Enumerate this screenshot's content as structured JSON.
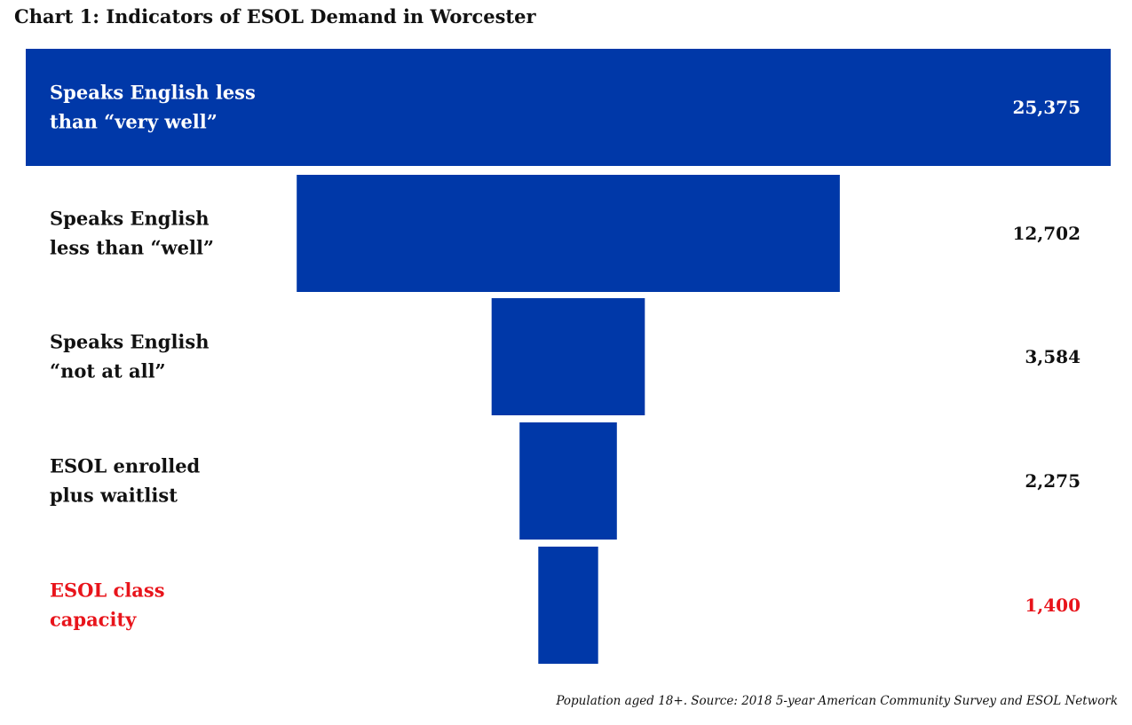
{
  "title": "Chart 1: Indicators of ESOL Demand in Worcester",
  "source_note": "Population aged 18+. Source: 2018 5-year American Community Survey and ESOL Network",
  "colors": {
    "bar": "#0038A8",
    "text": "#111111",
    "label_on_bar": "#ffffff",
    "highlight": "#E8141B"
  },
  "chart_data": {
    "type": "bar",
    "orientation": "horizontal-funnel",
    "categories": [
      [
        "Speaks English less",
        "than “very well”"
      ],
      [
        "Speaks English",
        "less than “well”"
      ],
      [
        "Speaks English",
        "“not at all”"
      ],
      [
        "ESOL enrolled",
        "plus waitlist"
      ],
      [
        "ESOL class",
        "capacity"
      ]
    ],
    "values": [
      25375,
      12702,
      3584,
      2275,
      1400
    ],
    "value_labels": [
      "25,375",
      "12,702",
      "3,584",
      "2,275",
      "1,400"
    ],
    "highlighted_category_index": 4,
    "title": "Chart 1: Indicators of ESOL Demand in Worcester",
    "xlabel": "",
    "ylabel": "",
    "grid": false,
    "legend": "none"
  }
}
